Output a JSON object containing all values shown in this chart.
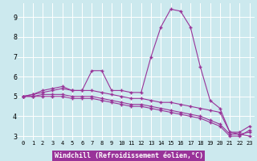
{
  "xlabel": "Windchill (Refroidissement éolien,°C)",
  "background_color": "#cce9ee",
  "line_color": "#993399",
  "marker": "+",
  "xlim": [
    -0.5,
    23.5
  ],
  "ylim": [
    2.8,
    9.7
  ],
  "yticks": [
    3,
    4,
    5,
    6,
    7,
    8,
    9
  ],
  "xticks": [
    0,
    1,
    2,
    3,
    4,
    5,
    6,
    7,
    8,
    9,
    10,
    11,
    12,
    13,
    14,
    15,
    16,
    17,
    18,
    19,
    20,
    21,
    22,
    23
  ],
  "lines": [
    [
      5.0,
      5.1,
      5.3,
      5.4,
      5.5,
      5.3,
      5.3,
      6.3,
      6.3,
      5.3,
      5.3,
      5.2,
      5.2,
      7.0,
      8.5,
      9.4,
      9.3,
      8.5,
      6.5,
      4.8,
      4.4,
      3.2,
      3.2,
      3.5
    ],
    [
      5.0,
      5.1,
      5.2,
      5.3,
      5.4,
      5.3,
      5.3,
      5.3,
      5.2,
      5.1,
      5.0,
      4.9,
      4.9,
      4.8,
      4.7,
      4.7,
      4.6,
      4.5,
      4.4,
      4.3,
      4.2,
      3.2,
      3.1,
      3.0
    ],
    [
      5.0,
      5.0,
      5.1,
      5.1,
      5.1,
      5.0,
      5.0,
      5.0,
      4.9,
      4.8,
      4.7,
      4.6,
      4.6,
      4.5,
      4.4,
      4.3,
      4.2,
      4.1,
      4.0,
      3.8,
      3.6,
      3.1,
      3.1,
      3.2
    ],
    [
      5.0,
      5.0,
      5.0,
      5.0,
      5.0,
      4.9,
      4.9,
      4.9,
      4.8,
      4.7,
      4.6,
      4.5,
      4.5,
      4.4,
      4.3,
      4.2,
      4.1,
      4.0,
      3.9,
      3.7,
      3.5,
      3.0,
      3.0,
      3.3
    ]
  ],
  "xlabel_bg": "#993399",
  "xlabel_color": "white",
  "xlabel_fontsize": 6,
  "tick_fontsize_x": 5,
  "tick_fontsize_y": 6,
  "grid_color": "#ffffff",
  "grid_linewidth": 0.7
}
